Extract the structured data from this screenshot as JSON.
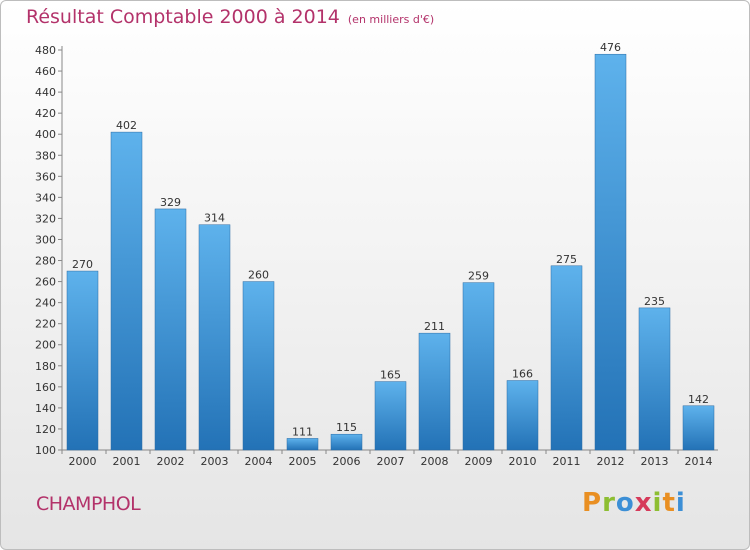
{
  "title": "Résultat Comptable 2000 à 2014",
  "subtitle": "(en milliers d'€)",
  "place": "CHAMPHOL",
  "logo": "Proxiti",
  "colors": {
    "title": "#b3326a",
    "bar_light": "#5eb2ec",
    "bar_dark": "#2372b6"
  },
  "chart_data": {
    "type": "bar",
    "categories": [
      "2000",
      "2001",
      "2002",
      "2003",
      "2004",
      "2005",
      "2006",
      "2007",
      "2008",
      "2009",
      "2010",
      "2011",
      "2012",
      "2013",
      "2014"
    ],
    "values": [
      270,
      402,
      329,
      314,
      260,
      111,
      115,
      165,
      211,
      259,
      166,
      275,
      476,
      235,
      142
    ],
    "ylim": [
      100,
      480
    ],
    "yticks": [
      100,
      120,
      140,
      160,
      180,
      200,
      220,
      240,
      260,
      280,
      300,
      320,
      340,
      360,
      380,
      400,
      420,
      440,
      460,
      480
    ],
    "grid": false,
    "xlabel": "",
    "ylabel": ""
  }
}
